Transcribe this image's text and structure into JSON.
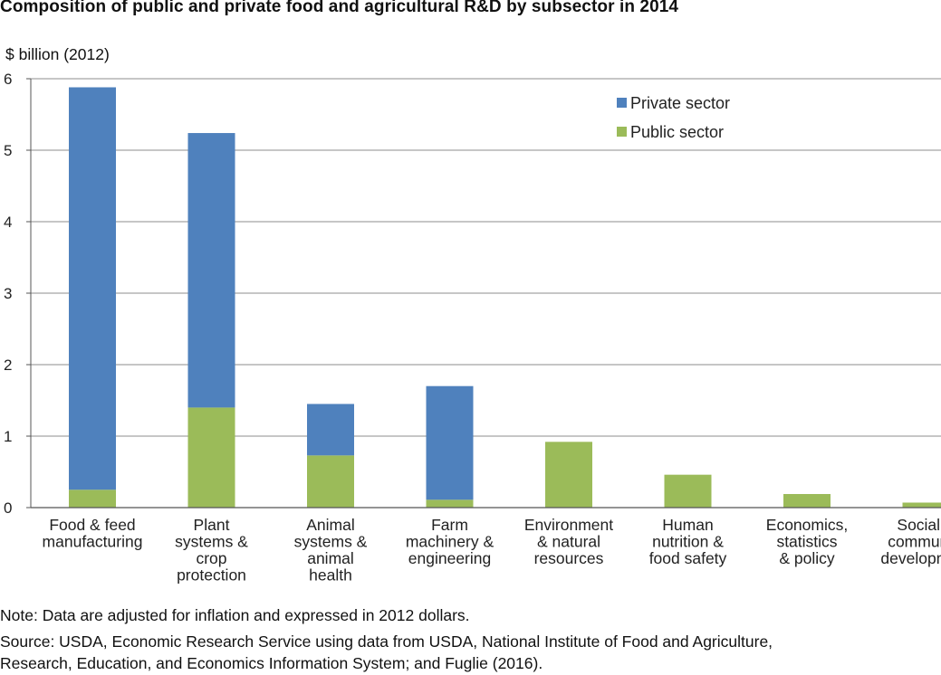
{
  "chart_data": {
    "type": "bar",
    "stacked": true,
    "title": "Composition of public and private food and agricultural R&D by subsector in 2014",
    "ylabel": "$ billion (2012)",
    "xlabel": "",
    "ylim": [
      0,
      6
    ],
    "yticks": [
      0,
      1,
      2,
      3,
      4,
      5,
      6
    ],
    "grid": true,
    "legend_position": "top-right",
    "categories": [
      [
        "Food & feed",
        "manufacturing"
      ],
      [
        "Plant",
        "systems &",
        "crop",
        "protection"
      ],
      [
        "Animal",
        "systems &",
        "animal",
        "health"
      ],
      [
        "Farm",
        "machinery &",
        "engineering"
      ],
      [
        "Environment",
        "& natural",
        "resources"
      ],
      [
        "Human",
        "nutrition &",
        "food safety"
      ],
      [
        "Economics,",
        "statistics",
        "& policy"
      ],
      [
        "Social &",
        "community",
        "development"
      ]
    ],
    "series": [
      {
        "name": "Public sector",
        "color": "#9bbb59",
        "values": [
          0.25,
          1.4,
          0.73,
          0.11,
          0.92,
          0.46,
          0.19,
          0.07
        ]
      },
      {
        "name": "Private sector",
        "color": "#4f81bd",
        "values": [
          5.63,
          3.84,
          0.72,
          1.59,
          0,
          0,
          0,
          0
        ]
      }
    ],
    "legend": [
      "Private sector",
      "Public sector"
    ]
  },
  "note": "Note: Data are adjusted for inflation and expressed in 2012 dollars.",
  "source_lines": [
    "Source: USDA, Economic Research Service using data from USDA, National Institute of Food and Agriculture,",
    "Research, Education, and Economics Information System; and Fuglie (2016)."
  ]
}
